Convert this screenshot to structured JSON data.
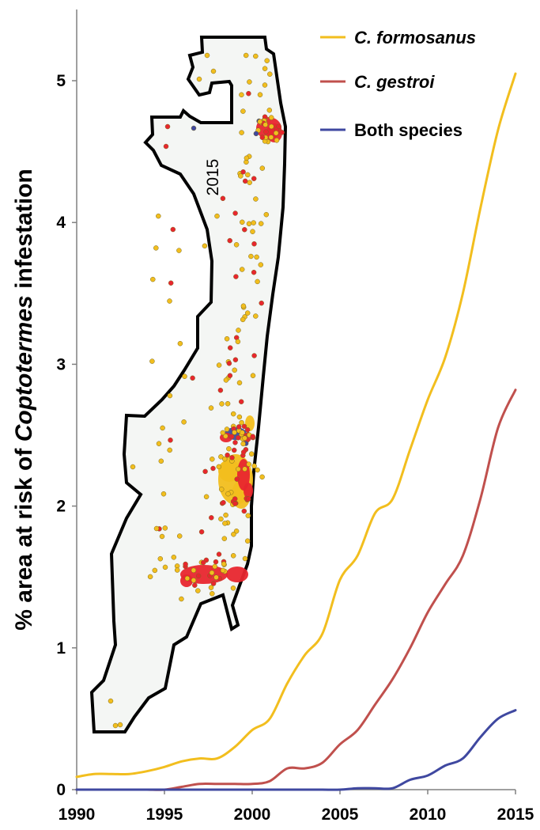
{
  "chart_data": {
    "type": "line",
    "ylabel_prefix": "% area at risk of ",
    "ylabel_italic": "Coptotermes",
    "ylabel_suffix": " infestation",
    "xlim": [
      1990,
      2015
    ],
    "ylim": [
      0,
      5.5
    ],
    "xticks": [
      1990,
      1995,
      2000,
      2005,
      2010,
      2015
    ],
    "yticks": [
      0,
      1,
      2,
      3,
      4,
      5
    ],
    "legend_position": "top-right",
    "inset_map_label": "2015",
    "series": [
      {
        "name": "C. formosanus",
        "italic": true,
        "color": "#F2BE1E",
        "x": [
          1990,
          1991,
          1992,
          1993,
          1994,
          1995,
          1996,
          1997,
          1998,
          1999,
          2000,
          2001,
          2002,
          2003,
          2004,
          2005,
          2006,
          2007,
          2008,
          2009,
          2010,
          2011,
          2012,
          2013,
          2014,
          2015
        ],
        "y": [
          0.09,
          0.11,
          0.11,
          0.11,
          0.13,
          0.16,
          0.2,
          0.22,
          0.22,
          0.3,
          0.42,
          0.5,
          0.75,
          0.95,
          1.1,
          1.48,
          1.65,
          1.95,
          2.05,
          2.4,
          2.75,
          3.05,
          3.5,
          4.1,
          4.65,
          5.05
        ]
      },
      {
        "name": "C. gestroi",
        "italic": true,
        "color": "#C0504D",
        "x": [
          1990,
          1991,
          1992,
          1993,
          1994,
          1995,
          1996,
          1997,
          1998,
          1999,
          2000,
          2001,
          2002,
          2003,
          2004,
          2005,
          2006,
          2007,
          2008,
          2009,
          2010,
          2011,
          2012,
          2013,
          2014,
          2015
        ],
        "y": [
          0,
          0,
          0,
          0,
          0,
          0,
          0.02,
          0.04,
          0.04,
          0.04,
          0.04,
          0.06,
          0.15,
          0.15,
          0.19,
          0.32,
          0.42,
          0.6,
          0.78,
          1.0,
          1.25,
          1.45,
          1.65,
          2.05,
          2.55,
          2.82
        ]
      },
      {
        "name": "Both species",
        "italic": false,
        "color": "#3F48A0",
        "x": [
          1990,
          1991,
          1992,
          1993,
          1994,
          1995,
          1996,
          1997,
          1998,
          1999,
          2000,
          2001,
          2002,
          2003,
          2004,
          2005,
          2006,
          2007,
          2008,
          2009,
          2010,
          2011,
          2012,
          2013,
          2014,
          2015
        ],
        "y": [
          0,
          0,
          0,
          0,
          0,
          0,
          0,
          0,
          0,
          0,
          0,
          0,
          0,
          0,
          0,
          0,
          0.01,
          0.01,
          0.01,
          0.07,
          0.1,
          0.17,
          0.22,
          0.37,
          0.5,
          0.56
        ]
      }
    ]
  }
}
